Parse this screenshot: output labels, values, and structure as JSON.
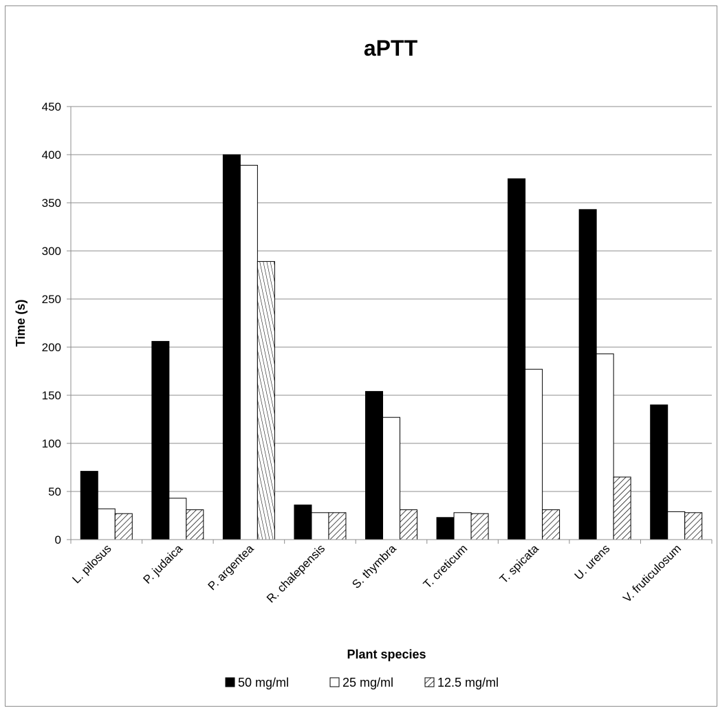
{
  "chart_data": {
    "type": "bar",
    "title": "aPTT",
    "xlabel": "Plant species",
    "ylabel": "Time (s)",
    "ylim": [
      0,
      450
    ],
    "yticks": [
      0,
      50,
      100,
      150,
      200,
      250,
      300,
      350,
      400,
      450
    ],
    "grid": "horizontal",
    "legend_position": "bottom",
    "categories": [
      "L. pilosus",
      "P. judaica",
      "P. argentea",
      "R. chalepensis",
      "S. thymbra",
      "T. creticum",
      "T. spicata",
      "U. urens",
      "V. fruticulosum"
    ],
    "series": [
      {
        "name": "50 mg/ml",
        "color": "#000000",
        "pattern": "solid",
        "values": [
          71,
          206,
          400,
          36,
          154,
          23,
          375,
          343,
          140
        ]
      },
      {
        "name": "25 mg/ml",
        "color": "#ffffff",
        "pattern": "none",
        "values": [
          32,
          43,
          389,
          28,
          127,
          28,
          177,
          193,
          29
        ]
      },
      {
        "name": "12.5 mg/ml",
        "color": "#ffffff",
        "pattern": "hatch",
        "values": [
          27,
          31,
          289,
          28,
          31,
          27,
          31,
          65,
          28
        ]
      }
    ]
  }
}
